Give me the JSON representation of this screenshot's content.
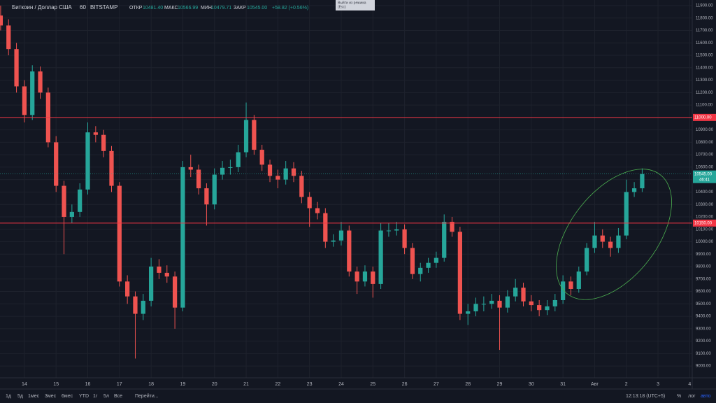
{
  "header": {
    "symbol": "Биткоин / Доллар США",
    "interval": "60",
    "exchange": "BITSTAMP",
    "ohlc": [
      {
        "label": "ОТКР",
        "value": "10481.40"
      },
      {
        "label": "МАКС",
        "value": "10566.99"
      },
      {
        "label": "МИН",
        "value": "10479.71"
      },
      {
        "label": "ЗАКР",
        "value": "10545.00"
      }
    ],
    "change": "+58.82 (+0.56%)"
  },
  "tooltip": [
    "Выйти из режима",
    "(Esc)"
  ],
  "chart_data": {
    "type": "candlestick",
    "x": [
      -0.75,
      -0.5,
      -0.25,
      0,
      0.25,
      0.5,
      0.75,
      1,
      1.25,
      1.5,
      1.75,
      2,
      2.25,
      2.5,
      2.75,
      3,
      3.25,
      3.5,
      3.75,
      4,
      4.25,
      4.5,
      4.75,
      5,
      5.25,
      5.5,
      5.75,
      6,
      6.25,
      6.5,
      6.75,
      7,
      7.25,
      7.5,
      7.75,
      8,
      8.25,
      8.5,
      8.75,
      9,
      9.25,
      9.5,
      9.75,
      10,
      10.25,
      10.5,
      10.75,
      11,
      11.25,
      11.5,
      11.75,
      12,
      12.25,
      12.5,
      12.75,
      13,
      13.25,
      13.5,
      13.75,
      14,
      14.25,
      14.5,
      14.75,
      15,
      15.25,
      15.5,
      15.75,
      16,
      16.25,
      16.5,
      16.75,
      17,
      17.25,
      17.5,
      17.75,
      18,
      18.25,
      18.5,
      18.75,
      19,
      19.25,
      19.5
    ],
    "open": [
      11820,
      11740,
      11550,
      11250,
      11020,
      11370,
      11200,
      10800,
      10450,
      10200,
      10240,
      10420,
      10880,
      10860,
      10730,
      10450,
      9680,
      9560,
      9420,
      9525,
      9800,
      9750,
      9720,
      9470,
      10600,
      10580,
      10430,
      10300,
      10540,
      10595,
      10600,
      10720,
      10980,
      10740,
      10620,
      10530,
      10500,
      10590,
      10530,
      10360,
      10270,
      10230,
      10000,
      10010,
      10090,
      9760,
      9680,
      9760,
      9660,
      10090,
      10090,
      10100,
      9950,
      9740,
      9790,
      9830,
      9870,
      10160,
      10080,
      9420,
      9440,
      9500,
      9500,
      9525,
      9470,
      9560,
      9630,
      9520,
      9490,
      9450,
      9480,
      9530,
      9680,
      9620,
      9760,
      9950,
      10050,
      10000,
      9950,
      10050,
      10400,
      10430
    ],
    "high": [
      11900,
      11790,
      11600,
      11300,
      11420,
      11410,
      11240,
      10850,
      10490,
      10300,
      10470,
      10960,
      10930,
      10900,
      10770,
      10480,
      9730,
      9600,
      9580,
      9870,
      9860,
      9810,
      9760,
      10650,
      10700,
      10620,
      10470,
      10590,
      10650,
      10660,
      10780,
      11120,
      11020,
      10780,
      10660,
      10580,
      10650,
      10640,
      10570,
      10400,
      10320,
      10270,
      10060,
      10160,
      10130,
      9800,
      9810,
      9800,
      10150,
      10150,
      10160,
      10140,
      9990,
      9830,
      9870,
      9920,
      10220,
      10200,
      10120,
      9500,
      9550,
      9560,
      9580,
      9570,
      9610,
      9700,
      9670,
      9570,
      9530,
      9530,
      9580,
      9730,
      9720,
      9800,
      9990,
      10160,
      10100,
      10040,
      10110,
      10500,
      10480,
      10590
    ],
    "low": [
      11700,
      11500,
      11200,
      10960,
      10980,
      11150,
      10760,
      10400,
      9900,
      10150,
      10200,
      10380,
      10800,
      10680,
      10400,
      9640,
      9500,
      9060,
      9370,
      9480,
      9700,
      9670,
      9300,
      9440,
      10520,
      10380,
      10130,
      10260,
      10500,
      10540,
      10560,
      10680,
      10700,
      10570,
      10480,
      10430,
      10460,
      10480,
      10310,
      10120,
      10180,
      9950,
      9960,
      9970,
      9720,
      9580,
      9640,
      9550,
      9620,
      10040,
      10050,
      9900,
      9700,
      9680,
      9750,
      9790,
      9840,
      10040,
      9370,
      9330,
      9400,
      9440,
      9460,
      9130,
      9430,
      9520,
      9480,
      9440,
      9400,
      9410,
      9440,
      9500,
      9570,
      9590,
      9730,
      9910,
      9950,
      9880,
      9910,
      10020,
      10360,
      10400
    ],
    "close": [
      11740,
      11550,
      11250,
      11020,
      11370,
      11200,
      10800,
      10450,
      10200,
      10240,
      10420,
      10880,
      10860,
      10730,
      10450,
      9680,
      9560,
      9420,
      9525,
      9800,
      9750,
      9720,
      9470,
      10600,
      10580,
      10430,
      10300,
      10540,
      10595,
      10600,
      10720,
      10980,
      10740,
      10620,
      10530,
      10500,
      10590,
      10530,
      10360,
      10270,
      10230,
      10000,
      10010,
      10090,
      9760,
      9680,
      9760,
      9660,
      10090,
      10090,
      10100,
      9950,
      9740,
      9790,
      9830,
      9870,
      10160,
      10080,
      9420,
      9440,
      9500,
      9500,
      9525,
      9470,
      9560,
      9630,
      9520,
      9490,
      9450,
      9480,
      9530,
      9680,
      9620,
      9760,
      9950,
      10050,
      10000,
      9950,
      10050,
      10400,
      10430,
      10545
    ],
    "up_color": "#26a69a",
    "down_color": "#ef5350",
    "xlim": [
      -0.77,
      21.08
    ],
    "xticks": [
      {
        "value": 0,
        "label": "14"
      },
      {
        "value": 1,
        "label": "15"
      },
      {
        "value": 2,
        "label": "16"
      },
      {
        "value": 3,
        "label": "17"
      },
      {
        "value": 4,
        "label": "18"
      },
      {
        "value": 5,
        "label": "19"
      },
      {
        "value": 6,
        "label": "20"
      },
      {
        "value": 7,
        "label": "21"
      },
      {
        "value": 8,
        "label": "22"
      },
      {
        "value": 9,
        "label": "23"
      },
      {
        "value": 10,
        "label": "24"
      },
      {
        "value": 11,
        "label": "25"
      },
      {
        "value": 12,
        "label": "26"
      },
      {
        "value": 13,
        "label": "27"
      },
      {
        "value": 14,
        "label": "28"
      },
      {
        "value": 15,
        "label": "29"
      },
      {
        "value": 16,
        "label": "30"
      },
      {
        "value": 17,
        "label": "31"
      },
      {
        "value": 18,
        "label": "Авг"
      },
      {
        "value": 19,
        "label": "2"
      },
      {
        "value": 20,
        "label": "3"
      },
      {
        "value": 21,
        "label": "4"
      }
    ],
    "ylim": [
      8905,
      11945
    ],
    "yticks": [
      {
        "value": 9000,
        "label": "9000.00"
      },
      {
        "value": 9100,
        "label": "9100.00"
      },
      {
        "value": 9200,
        "label": "9200.00"
      },
      {
        "value": 9300,
        "label": "9300.00"
      },
      {
        "value": 9400,
        "label": "9400.00"
      },
      {
        "value": 9500,
        "label": "9500.00"
      },
      {
        "value": 9600,
        "label": "9600.00"
      },
      {
        "value": 9700,
        "label": "9700.00"
      },
      {
        "value": 9800,
        "label": "9800.00"
      },
      {
        "value": 9900,
        "label": "9900.00"
      },
      {
        "value": 10000,
        "label": "10000.00"
      },
      {
        "value": 10100,
        "label": "10100.00"
      },
      {
        "value": 10200,
        "label": "10200.00"
      },
      {
        "value": 10300,
        "label": "10300.00"
      },
      {
        "value": 10400,
        "label": "10400.00"
      },
      {
        "value": 10500,
        "label": "10500.00"
      },
      {
        "value": 10600,
        "label": "10600.00"
      },
      {
        "value": 10700,
        "label": "10700.00"
      },
      {
        "value": 10800,
        "label": "10800.00"
      },
      {
        "value": 10900,
        "label": "10900.00"
      },
      {
        "value": 11000,
        "label": "11000.00"
      },
      {
        "value": 11100,
        "label": "11100.00"
      },
      {
        "value": 11200,
        "label": "11200.00"
      },
      {
        "value": 11300,
        "label": "11300.00"
      },
      {
        "value": 11400,
        "label": "11400.00"
      },
      {
        "value": 11500,
        "label": "11500.00"
      },
      {
        "value": 11600,
        "label": "11600.00"
      },
      {
        "value": 11700,
        "label": "11700.00"
      },
      {
        "value": 11800,
        "label": "11800.00"
      },
      {
        "value": 11900,
        "label": "11900.00"
      }
    ],
    "grid": true,
    "levels": [
      {
        "value": 11000,
        "label": "11000.00",
        "color": "#f23645"
      },
      {
        "value": 10150,
        "label": "10150.00",
        "color": "#f23645"
      }
    ],
    "last_price": {
      "value": 10545,
      "label": "10545.00",
      "countdown": "46:41",
      "color": "#26a69a"
    }
  },
  "bottom": {
    "ranges": [
      "1д",
      "5д",
      "1мес",
      "3мес",
      "6мес",
      "YTD",
      "1г",
      "5л",
      "Все"
    ],
    "goto": "Перейти...",
    "clock": "12:13:18 (UTC+5)",
    "options": [
      "%",
      "лог",
      "авто"
    ]
  }
}
